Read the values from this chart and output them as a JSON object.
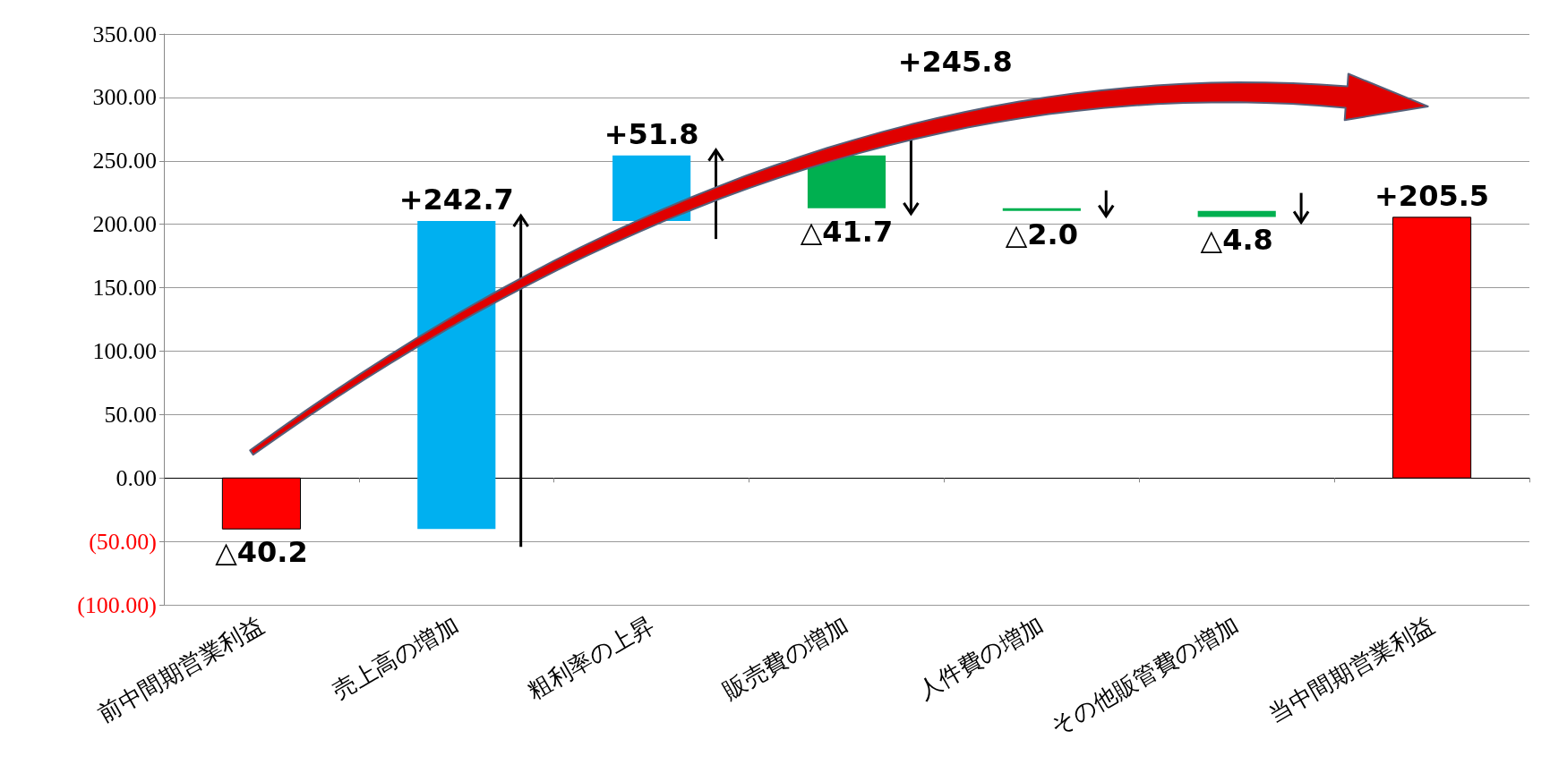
{
  "chart_data": {
    "type": "bar",
    "categories": [
      "前中間期営業利益",
      "売上高の増加",
      "粗利率の上昇",
      "販売費の増加",
      "人件費の増加",
      "その他販管費の増加",
      "当中間期営業利益"
    ],
    "values": [
      -40.2,
      242.7,
      51.8,
      -41.7,
      -2.0,
      -4.8,
      205.5
    ],
    "base": [
      0,
      -40.2,
      202.5,
      254.3,
      212.6,
      210.6,
      0
    ],
    "colors": [
      "#ff0000",
      "#00b0f0",
      "#00b0f0",
      "#00b050",
      "#00b050",
      "#00b050",
      "#ff0000"
    ],
    "value_labels": [
      "△40.2",
      "+242.7",
      "+51.8",
      "△41.7",
      "△2.0",
      "△4.8",
      "+205.5"
    ],
    "annotations": [
      "+245.8"
    ],
    "ylim": [
      -100,
      350
    ],
    "yticks": [
      {
        "value": -100,
        "label": "(100.00)"
      },
      {
        "value": -50,
        "label": "(50.00)"
      },
      {
        "value": 0,
        "label": "0.00"
      },
      {
        "value": 50,
        "label": "50.00"
      },
      {
        "value": 100,
        "label": "100.00"
      },
      {
        "value": 150,
        "label": "150.00"
      },
      {
        "value": 200,
        "label": "200.00"
      },
      {
        "value": 250,
        "label": "250.00"
      },
      {
        "value": 300,
        "label": "300.00"
      },
      {
        "value": 350,
        "label": "350.00"
      }
    ],
    "grid": "y"
  }
}
